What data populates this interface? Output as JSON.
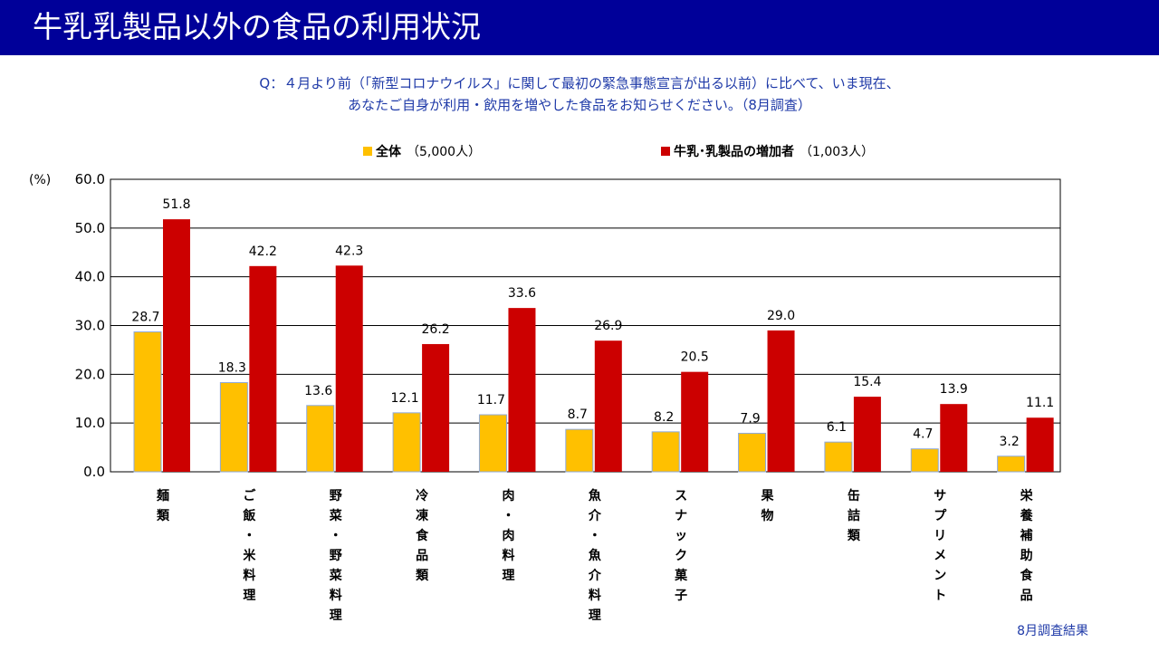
{
  "header": {
    "title": "牛乳乳製品以外の食品の利用状況"
  },
  "question": {
    "line1": "Q：４月より前（「新型コロナウイルス」に関して最初の緊急事態宣言が出る以前）に比べて、いま現在、",
    "line2": "あなたご自身が利用・飲用を増やした食品をお知らせください。（8月調査）"
  },
  "footnote": "8月調査結果",
  "colors": {
    "header_bg": "#000099",
    "overall": "#FFC000",
    "dairy": "#CC0000",
    "question_text": "#1f3aa8"
  },
  "chart_data": {
    "type": "bar",
    "ylabel": "(%)",
    "ylim": [
      0,
      60
    ],
    "yticks": [
      "0.0",
      "10.0",
      "20.0",
      "30.0",
      "40.0",
      "50.0",
      "60.0"
    ],
    "grid": true,
    "legend_position": "top",
    "categories": [
      "麺類",
      "ご飯・米料理",
      "野菜・野菜料理",
      "冷凍食品類",
      "肉・肉料理",
      "魚介・魚介料理",
      "スナック菓子",
      "果物",
      "缶詰類",
      "サプリメント",
      "栄養補助食品"
    ],
    "series": [
      {
        "name": "全体",
        "count": "（5,000人）",
        "color": "#FFC000",
        "values": [
          28.7,
          18.3,
          13.6,
          12.1,
          11.7,
          8.7,
          8.2,
          7.9,
          6.1,
          4.7,
          3.2
        ]
      },
      {
        "name": "牛乳･乳製品の増加者",
        "count": "（1,003人）",
        "color": "#CC0000",
        "values": [
          51.8,
          42.2,
          42.3,
          26.2,
          33.6,
          26.9,
          20.5,
          29.0,
          15.4,
          13.9,
          11.1
        ]
      }
    ]
  }
}
